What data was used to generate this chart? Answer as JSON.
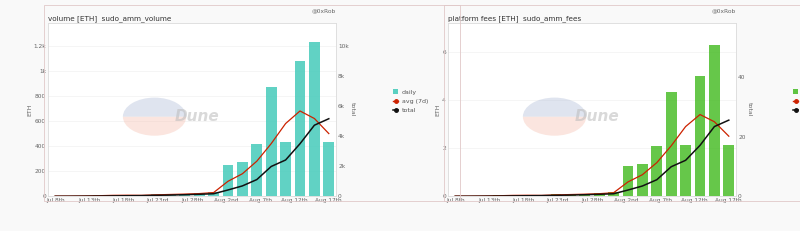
{
  "chart1": {
    "title": "volume [ETH]  sudo_amm_volume",
    "ylabel_left": "ETH",
    "ylabel_right": "total",
    "bar_color": "#3ec9b8",
    "avg_color": "#cc2200",
    "total_color": "#111111",
    "xlabels": [
      "Jul 8th",
      "Jul 13th",
      "Jul 18th",
      "Jul 23rd",
      "Jul 28th",
      "Aug 2nd",
      "Aug 7th",
      "Aug 12th",
      "Aug 17th"
    ],
    "bar_values": [
      2,
      3,
      5,
      8,
      12,
      10,
      8,
      20,
      18,
      22,
      30,
      35,
      250,
      270,
      420,
      870,
      430,
      1080,
      1230,
      430
    ],
    "avg7d_values": [
      2,
      2,
      3,
      5,
      8,
      9,
      8,
      12,
      15,
      18,
      22,
      30,
      120,
      180,
      280,
      420,
      580,
      680,
      620,
      500
    ],
    "total_values": [
      2,
      5,
      10,
      18,
      30,
      40,
      48,
      68,
      86,
      108,
      138,
      173,
      423,
      693,
      1113,
      1983,
      2413,
      3493,
      4723,
      5153
    ],
    "ylim_left": [
      0,
      1380
    ],
    "ylim_right": [
      0,
      11500
    ],
    "yticks_left_labels": [
      "0",
      "200",
      "400",
      "600",
      "800",
      "1k",
      "1.2k"
    ],
    "yticks_left_vals": [
      0,
      200,
      400,
      600,
      800,
      1000,
      1200
    ],
    "yticks_right_labels": [
      "0",
      "2k",
      "4k",
      "6k",
      "8k",
      "10k"
    ],
    "yticks_right_vals": [
      0,
      2000,
      4000,
      6000,
      8000,
      10000
    ]
  },
  "chart2": {
    "title": "platform fees [ETH]  sudo_amm_fees",
    "ylabel_left": "ETH",
    "ylabel_right": "total",
    "bar_color": "#44bb22",
    "avg_color": "#cc2200",
    "total_color": "#111111",
    "xlabels": [
      "Jul 8th",
      "Jul 13th",
      "Jul 18th",
      "Jul 23rd",
      "Jul 28th",
      "Aug 2nd",
      "Aug 7th",
      "Aug 12th",
      "Aug 17th"
    ],
    "bar_values": [
      0.01,
      0.015,
      0.025,
      0.04,
      0.06,
      0.05,
      0.04,
      0.1,
      0.09,
      0.11,
      0.15,
      0.175,
      1.25,
      1.35,
      2.1,
      4.35,
      2.15,
      5.0,
      6.3,
      2.15
    ],
    "avg7d_values": [
      0.01,
      0.01,
      0.015,
      0.025,
      0.04,
      0.045,
      0.04,
      0.06,
      0.075,
      0.09,
      0.11,
      0.15,
      0.6,
      0.9,
      1.4,
      2.1,
      2.9,
      3.4,
      3.1,
      2.5
    ],
    "total_values": [
      0.01,
      0.025,
      0.05,
      0.09,
      0.15,
      0.2,
      0.24,
      0.34,
      0.43,
      0.54,
      0.69,
      0.865,
      2.115,
      3.465,
      5.565,
      9.915,
      12.065,
      17.065,
      23.365,
      25.515
    ],
    "ylim_left": [
      0,
      7.2
    ],
    "ylim_right": [
      0,
      58
    ],
    "yticks_left_labels": [
      "0",
      "2",
      "4",
      "6"
    ],
    "yticks_left_vals": [
      0,
      2,
      4,
      6
    ],
    "yticks_right_labels": [
      "0",
      "20",
      "40"
    ],
    "yticks_right_vals": [
      0,
      20,
      40
    ]
  },
  "background_color": "#f9f9f9",
  "panel_bg": "#ffffff",
  "attribution": "@0xRob",
  "n_bars": 20,
  "outer_border_color": "#e8e8e8"
}
